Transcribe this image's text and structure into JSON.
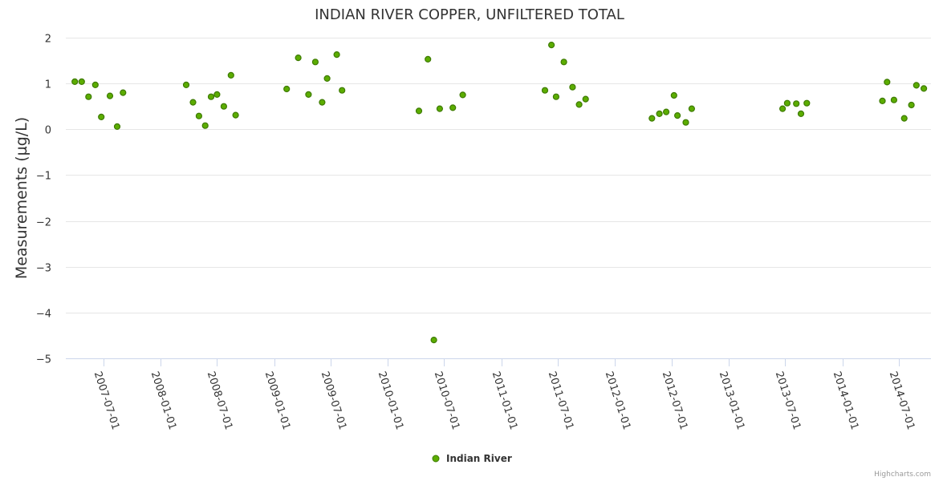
{
  "chart_data": {
    "type": "scatter",
    "title": "INDIAN RIVER COPPER, UNFILTERED TOTAL",
    "ylabel": "Measurements (µg/L)",
    "xlabel": "",
    "ylim": [
      -5,
      2
    ],
    "yticks": [
      2,
      1,
      0,
      -1,
      -2,
      -3,
      -4,
      -5
    ],
    "ytick_labels": [
      "2",
      "1",
      "0",
      "−1",
      "−2",
      "−3",
      "−4",
      "−5"
    ],
    "xlim": [
      "2007-03-03",
      "2014-10-13"
    ],
    "xticks": [
      "2007-07-01",
      "2008-01-01",
      "2008-07-01",
      "2009-01-01",
      "2009-07-01",
      "2010-01-01",
      "2010-07-01",
      "2011-01-01",
      "2011-07-01",
      "2012-01-01",
      "2012-07-01",
      "2013-01-01",
      "2013-07-01",
      "2014-01-01",
      "2014-07-01"
    ],
    "grid": true,
    "legend_position": "bottom-center",
    "series": [
      {
        "name": "Indian River",
        "color": "#5cad00",
        "marker_stroke": "#3d7a00",
        "points": [
          {
            "x": "2007-04-01",
            "y": 1.04
          },
          {
            "x": "2007-04-23",
            "y": 1.04
          },
          {
            "x": "2007-05-15",
            "y": 0.71
          },
          {
            "x": "2007-06-06",
            "y": 0.97
          },
          {
            "x": "2007-06-25",
            "y": 0.27
          },
          {
            "x": "2007-07-23",
            "y": 0.73
          },
          {
            "x": "2007-08-15",
            "y": 0.06
          },
          {
            "x": "2007-09-03",
            "y": 0.8
          },
          {
            "x": "2008-03-24",
            "y": 0.97
          },
          {
            "x": "2008-04-15",
            "y": 0.59
          },
          {
            "x": "2008-05-04",
            "y": 0.29
          },
          {
            "x": "2008-05-24",
            "y": 0.08
          },
          {
            "x": "2008-06-12",
            "y": 0.71
          },
          {
            "x": "2008-07-01",
            "y": 0.76
          },
          {
            "x": "2008-07-23",
            "y": 0.5
          },
          {
            "x": "2008-08-15",
            "y": 1.18
          },
          {
            "x": "2008-08-30",
            "y": 0.31
          },
          {
            "x": "2009-02-10",
            "y": 0.88
          },
          {
            "x": "2009-03-19",
            "y": 1.56
          },
          {
            "x": "2009-04-21",
            "y": 0.76
          },
          {
            "x": "2009-05-13",
            "y": 1.47
          },
          {
            "x": "2009-06-04",
            "y": 0.59
          },
          {
            "x": "2009-06-20",
            "y": 1.11
          },
          {
            "x": "2009-07-21",
            "y": 1.63
          },
          {
            "x": "2009-08-07",
            "y": 0.85
          },
          {
            "x": "2010-04-11",
            "y": 0.4
          },
          {
            "x": "2010-05-10",
            "y": 1.53
          },
          {
            "x": "2010-05-29",
            "y": -4.6
          },
          {
            "x": "2010-06-17",
            "y": 0.45
          },
          {
            "x": "2010-07-29",
            "y": 0.47
          },
          {
            "x": "2010-08-30",
            "y": 0.75
          },
          {
            "x": "2011-05-21",
            "y": 0.85
          },
          {
            "x": "2011-06-11",
            "y": 1.84
          },
          {
            "x": "2011-06-26",
            "y": 0.71
          },
          {
            "x": "2011-07-21",
            "y": 1.47
          },
          {
            "x": "2011-08-18",
            "y": 0.92
          },
          {
            "x": "2011-09-08",
            "y": 0.54
          },
          {
            "x": "2011-09-29",
            "y": 0.66
          },
          {
            "x": "2012-04-29",
            "y": 0.24
          },
          {
            "x": "2012-05-23",
            "y": 0.34
          },
          {
            "x": "2012-06-14",
            "y": 0.38
          },
          {
            "x": "2012-07-09",
            "y": 0.74
          },
          {
            "x": "2012-07-20",
            "y": 0.3
          },
          {
            "x": "2012-08-16",
            "y": 0.15
          },
          {
            "x": "2012-09-04",
            "y": 0.45
          },
          {
            "x": "2013-06-23",
            "y": 0.45
          },
          {
            "x": "2013-07-08",
            "y": 0.57
          },
          {
            "x": "2013-08-06",
            "y": 0.56
          },
          {
            "x": "2013-08-21",
            "y": 0.34
          },
          {
            "x": "2013-09-09",
            "y": 0.57
          },
          {
            "x": "2014-05-10",
            "y": 0.62
          },
          {
            "x": "2014-05-25",
            "y": 1.03
          },
          {
            "x": "2014-06-16",
            "y": 0.64
          },
          {
            "x": "2014-07-19",
            "y": 0.24
          },
          {
            "x": "2014-08-11",
            "y": 0.53
          },
          {
            "x": "2014-08-27",
            "y": 0.96
          },
          {
            "x": "2014-09-20",
            "y": 0.89
          }
        ]
      }
    ]
  },
  "legend": {
    "label": "Indian River"
  },
  "credits": {
    "text": "Highcharts.com"
  }
}
